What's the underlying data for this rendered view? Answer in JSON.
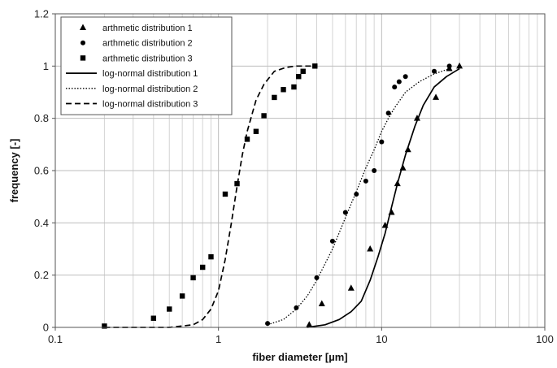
{
  "chart_data": {
    "type": "scatter",
    "title": "",
    "xlabel": "fiber diameter [µm]",
    "ylabel": "frequency [-]",
    "x_scale": "log",
    "xlim": [
      0.1,
      100
    ],
    "ylim": [
      0,
      1.2
    ],
    "x_ticks": [
      "0.1",
      "1",
      "10",
      "100"
    ],
    "y_ticks": [
      "0",
      "0.2",
      "0.4",
      "0.6",
      "0.8",
      "1",
      "1.2"
    ],
    "grid": true,
    "legend_position": "top-left",
    "series": [
      {
        "name": "arthmetic distribution 1",
        "kind": "marker",
        "marker": "triangle",
        "x": [
          3.6,
          4.3,
          6.5,
          8.5,
          10.5,
          11.5,
          12.5,
          13.5,
          14.5,
          16.5,
          21.5,
          26,
          30
        ],
        "y": [
          0.01,
          0.09,
          0.15,
          0.3,
          0.39,
          0.44,
          0.55,
          0.61,
          0.68,
          0.8,
          0.88,
          0.99,
          1.0
        ]
      },
      {
        "name": "arthmetic distribution 2",
        "kind": "marker",
        "marker": "circle",
        "x": [
          2.0,
          3.0,
          4.0,
          5.0,
          6.0,
          7.0,
          8.0,
          9.0,
          10.0,
          11.0,
          12.0,
          12.8,
          14.0,
          21.0,
          26.0
        ],
        "y": [
          0.015,
          0.075,
          0.19,
          0.33,
          0.44,
          0.51,
          0.56,
          0.6,
          0.71,
          0.82,
          0.92,
          0.94,
          0.96,
          0.98,
          1.0
        ]
      },
      {
        "name": "arthmetic distribution 3",
        "kind": "marker",
        "marker": "square",
        "x": [
          0.2,
          0.4,
          0.5,
          0.6,
          0.7,
          0.8,
          0.9,
          1.1,
          1.3,
          1.5,
          1.7,
          1.9,
          2.2,
          2.5,
          2.9,
          3.1,
          3.3,
          3.9
        ],
        "y": [
          0.005,
          0.035,
          0.07,
          0.12,
          0.19,
          0.23,
          0.27,
          0.51,
          0.55,
          0.72,
          0.75,
          0.81,
          0.88,
          0.91,
          0.92,
          0.96,
          0.98,
          1.0
        ]
      },
      {
        "name": "log-normal distribution 1",
        "kind": "line",
        "dash": "solid",
        "x": [
          3.5,
          4.5,
          5.5,
          6.5,
          7.5,
          8.5,
          9.5,
          10.5,
          11.5,
          12.5,
          14,
          16,
          18,
          21,
          25,
          30
        ],
        "y": [
          0.0,
          0.01,
          0.03,
          0.06,
          0.1,
          0.18,
          0.27,
          0.36,
          0.46,
          0.55,
          0.66,
          0.77,
          0.85,
          0.92,
          0.96,
          0.99
        ]
      },
      {
        "name": "log-normal distribution 2",
        "kind": "line",
        "dash": "dotted",
        "x": [
          2.0,
          2.5,
          3.0,
          3.5,
          4.0,
          5.0,
          6.0,
          7.0,
          8.0,
          9.0,
          10.0,
          11.0,
          12.0,
          14.0,
          17.0,
          21.0,
          26.0
        ],
        "y": [
          0.01,
          0.03,
          0.07,
          0.12,
          0.18,
          0.3,
          0.42,
          0.52,
          0.61,
          0.68,
          0.75,
          0.8,
          0.84,
          0.9,
          0.94,
          0.97,
          0.99
        ]
      },
      {
        "name": "log-normal distribution 3",
        "kind": "line",
        "dash": "dashed",
        "x": [
          0.2,
          0.5,
          0.7,
          0.8,
          0.9,
          1.0,
          1.1,
          1.2,
          1.3,
          1.4,
          1.5,
          1.7,
          1.9,
          2.2,
          2.6,
          3.0,
          3.9
        ],
        "y": [
          0.0,
          0.0,
          0.01,
          0.03,
          0.07,
          0.14,
          0.26,
          0.4,
          0.54,
          0.66,
          0.75,
          0.87,
          0.93,
          0.98,
          0.995,
          1.0,
          1.0
        ]
      }
    ]
  }
}
